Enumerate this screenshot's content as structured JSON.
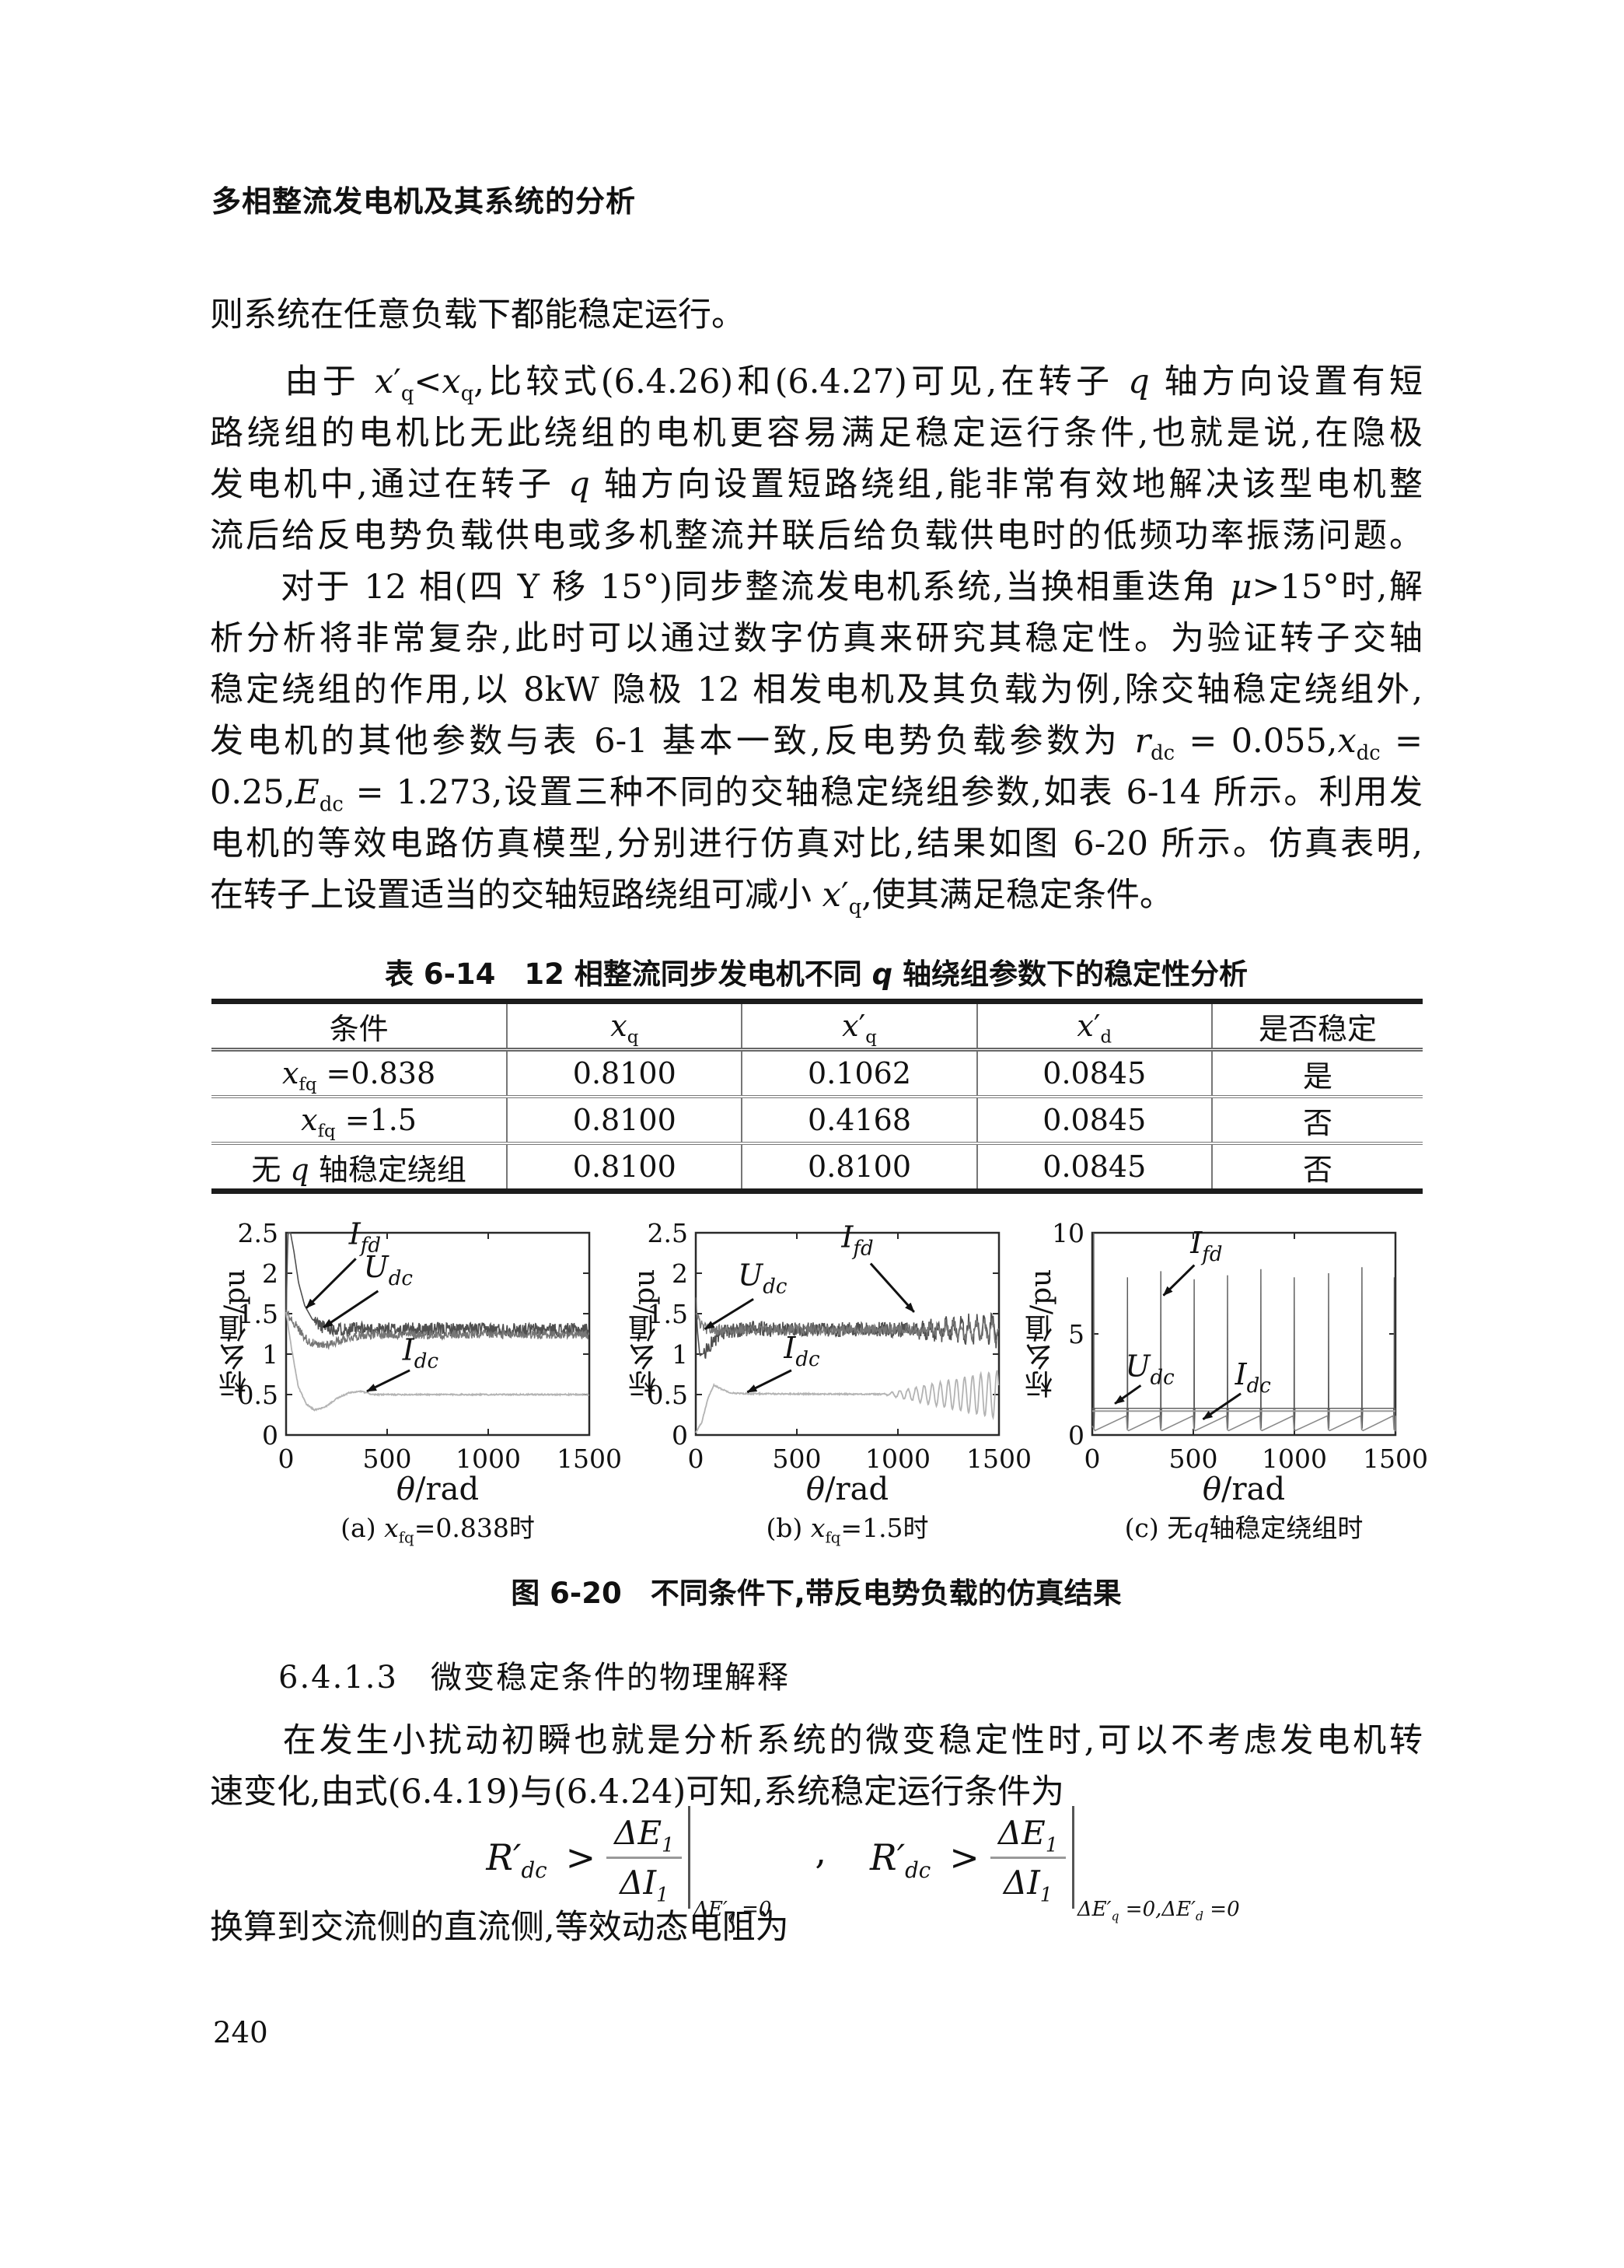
{
  "page": {
    "header": "多相整流发电机及其系统的分析",
    "number": "240"
  },
  "paragraphs": {
    "p1": [
      "则系统在任意负载下都能稳定运行。"
    ],
    "p2": [
      "　　由于 <i>x</i>′<sub>q</sub>&lt;<i>x</i><sub>q</sub>,比较式(6.4.26)和(6.4.27)可见,在转子 <i>q</i> 轴方向设置有短",
      "路绕组的电机比无此绕组的电机更容易满足稳定运行条件,也就是说,在隐极",
      "发电机中,通过在转子 <i>q</i> 轴方向设置短路绕组,能非常有效地解决该型电机整",
      "流后给反电势负载供电或多机整流并联后给负载供电时的低频功率振荡问题。"
    ],
    "p3": [
      "　　对于 12 相(四 Y 移 15°)同步整流发电机系统,当换相重迭角 <i>μ</i>&gt;15°时,解",
      "析分析将非常复杂,此时可以通过数字仿真来研究其稳定性。为验证转子交轴",
      "稳定绕组的作用,以 8kW 隐极 12 相发电机及其负载为例,除交轴稳定绕组外,",
      "发电机的其他参数与表 6-1 基本一致,反电势负载参数为 <i>r</i><sub>dc</sub> = 0.055,<i>x</i><sub>dc</sub> =",
      "0.25,<i>E</i><sub>dc</sub> = 1.273,设置三种不同的交轴稳定绕组参数,如表 6-14 所示。利用发",
      "电机的等效电路仿真模型,分别进行仿真对比,结果如图 6-20 所示。仿真表明,",
      "在转子上设置适当的交轴短路绕组可减小 <i>x</i>′<sub>q</sub>,使其满足稳定条件。"
    ],
    "p4": [
      "　　在发生小扰动初瞬也就是分析系统的微变稳定性时,可以不考虑发电机转",
      "速变化,由式(6.4.19)与(6.4.24)可知,系统稳定运行条件为"
    ],
    "p5": [
      "换算到交流侧的直流侧,等效动态电阻为"
    ]
  },
  "section": {
    "heading": "6.4.1.3　微变稳定条件的物理解释"
  },
  "table": {
    "caption": "表 6-14　12 相整流同步发电机不同 <i>q</i> 轴绕组参数下的稳定性分析",
    "headers": [
      "条件",
      "<i>x</i><sub>q</sub>",
      "<i>x</i>′<sub>q</sub>",
      "<i>x</i>′<sub>d</sub>",
      "是否稳定"
    ],
    "rows": [
      [
        "<i>x</i><sub>fq</sub> =0.838",
        "0.8100",
        "0.1062",
        "0.0845",
        "是"
      ],
      [
        "<i>x</i><sub>fq</sub> =1.5",
        "0.8100",
        "0.4168",
        "0.0845",
        "否"
      ],
      [
        "无 <i>q</i> 轴稳定绕组",
        "0.8100",
        "0.8100",
        "0.0845",
        "否"
      ]
    ]
  },
  "figure": {
    "caption": "图 6-20　不同条件下,带反电势负载的仿真结果"
  },
  "formula": {
    "lhs": "<i>R</i>′<sub>dc</sub>",
    "rel": "&gt;",
    "num": "Δ<i>E</i><sub>1</sub>",
    "den": "Δ<i>I</i><sub>1</sub>",
    "cond1": "Δ<i>E</i>′<sub>q</sub> =0",
    "sep": ",",
    "cond2": "Δ<i>E</i>′<sub>q</sub> =0,Δ<i>E</i>′<sub>d</sub> =0"
  },
  "chart_data": [
    {
      "type": "line",
      "panel": "a",
      "caption_html": "(a) <i>x</i><sub>fq</sub>=0.838时",
      "xlabel_html": "<i>θ</i>/rad",
      "ylabel": "标幺值/pu",
      "xlim": [
        0,
        1500
      ],
      "ylim": [
        0,
        2.5
      ],
      "xticks": [
        0,
        500,
        1000,
        1500
      ],
      "yticks": [
        0,
        0.5,
        1,
        1.5,
        2,
        2.5
      ],
      "seed": 11,
      "series": [
        {
          "name": "I_fd",
          "kind": "interp",
          "color": "#4f4f4f",
          "w": 1.6,
          "noise": 0.085,
          "noise_from": 140,
          "points": [
            [
              0,
              1.45
            ],
            [
              6,
              2.2
            ],
            [
              10,
              2.5
            ],
            [
              22,
              2.5
            ],
            [
              38,
              2.28
            ],
            [
              62,
              1.88
            ],
            [
              92,
              1.6
            ],
            [
              130,
              1.43
            ],
            [
              180,
              1.34
            ],
            [
              260,
              1.31
            ],
            [
              1500,
              1.3
            ]
          ]
        },
        {
          "name": "U_dc",
          "kind": "interp",
          "color": "#767676",
          "w": 1.4,
          "noise": 0.055,
          "noise_from": 0,
          "points": [
            [
              0,
              1.52
            ],
            [
              30,
              1.42
            ],
            [
              70,
              1.28
            ],
            [
              110,
              1.16
            ],
            [
              160,
              1.1
            ],
            [
              220,
              1.13
            ],
            [
              300,
              1.2
            ],
            [
              380,
              1.24
            ],
            [
              1500,
              1.24
            ]
          ]
        },
        {
          "name": "I_dc",
          "kind": "interp",
          "color": "#b3b3b3",
          "w": 1.8,
          "noise": 0.008,
          "noise_from": 0,
          "points": [
            [
              0,
              1.52
            ],
            [
              25,
              1.1
            ],
            [
              60,
              0.6
            ],
            [
              100,
              0.38
            ],
            [
              140,
              0.31
            ],
            [
              190,
              0.34
            ],
            [
              250,
              0.45
            ],
            [
              310,
              0.52
            ],
            [
              370,
              0.54
            ],
            [
              430,
              0.5
            ],
            [
              1500,
              0.5
            ]
          ]
        }
      ],
      "annotations": [
        {
          "m": "I",
          "s": "fd",
          "lx": 390,
          "ly": 2.36,
          "arrow": [
            345,
            2.18,
            100,
            1.57
          ]
        },
        {
          "m": "U",
          "s": "dc",
          "lx": 505,
          "ly": 1.95,
          "arrow": [
            455,
            1.78,
            185,
            1.33
          ]
        },
        {
          "m": "I",
          "s": "dc",
          "lx": 665,
          "ly": 0.93,
          "arrow": [
            612,
            0.8,
            400,
            0.54
          ]
        }
      ]
    },
    {
      "type": "line",
      "panel": "b",
      "caption_html": "(b) <i>x</i><sub>fq</sub>=1.5时",
      "xlabel_html": "<i>θ</i>/rad",
      "ylabel": "标幺值/pu",
      "xlim": [
        0,
        1500
      ],
      "ylim": [
        0,
        2.5
      ],
      "xticks": [
        0,
        500,
        1000,
        1500
      ],
      "yticks": [
        0,
        0.5,
        1,
        1.5,
        2,
        2.5
      ],
      "seed": 23,
      "series": [
        {
          "name": "I_fd",
          "kind": "interp",
          "color": "#4f4f4f",
          "w": 1.6,
          "noise": 0.095,
          "noise_from": 40,
          "osc": {
            "start": 1000,
            "period": 38,
            "amp": 0.16
          },
          "points": [
            [
              0,
              1.7
            ],
            [
              8,
              1.3
            ],
            [
              20,
              0.98
            ],
            [
              45,
              1.02
            ],
            [
              85,
              1.16
            ],
            [
              150,
              1.28
            ],
            [
              230,
              1.31
            ],
            [
              1500,
              1.3
            ]
          ]
        },
        {
          "name": "U_dc",
          "kind": "interp",
          "color": "#767676",
          "w": 1.4,
          "noise": 0.065,
          "noise_from": 0,
          "osc": {
            "start": 1000,
            "period": 38,
            "amp": 0.13
          },
          "points": [
            [
              0,
              1.5
            ],
            [
              25,
              1.36
            ],
            [
              60,
              1.3
            ],
            [
              1500,
              1.3
            ]
          ]
        },
        {
          "name": "I_dc",
          "kind": "interp",
          "color": "#b3b3b3",
          "w": 1.8,
          "noise": 0.008,
          "noise_from": 0,
          "osc": {
            "start": 920,
            "period": 40,
            "amp": 0.3
          },
          "points": [
            [
              0,
              0.03
            ],
            [
              30,
              0.16
            ],
            [
              60,
              0.45
            ],
            [
              90,
              0.62
            ],
            [
              125,
              0.57
            ],
            [
              175,
              0.52
            ],
            [
              245,
              0.51
            ],
            [
              1500,
              0.5
            ]
          ]
        }
      ],
      "annotations": [
        {
          "m": "U",
          "s": "dc",
          "lx": 330,
          "ly": 1.85,
          "arrow": [
            285,
            1.68,
            45,
            1.31
          ]
        },
        {
          "m": "I",
          "s": "fd",
          "lx": 800,
          "ly": 2.32,
          "arrow": [
            865,
            2.12,
            1080,
            1.52
          ]
        },
        {
          "m": "I",
          "s": "dc",
          "lx": 525,
          "ly": 0.95,
          "arrow": [
            473,
            0.8,
            255,
            0.53
          ]
        }
      ]
    },
    {
      "type": "line",
      "panel": "c",
      "caption_html": "(c) 无<i>q</i>轴稳定绕组时",
      "xlabel_html": "<i>θ</i>/rad",
      "ylabel": "标幺值/pu",
      "xlim": [
        0,
        1500
      ],
      "ylim": [
        0,
        10
      ],
      "xticks": [
        0,
        500,
        1000,
        1500
      ],
      "yticks": [
        0,
        5,
        10
      ],
      "seed": 5,
      "series": [
        {
          "name": "I_fd",
          "kind": "spikes",
          "color": "#5a5a5a",
          "w": 1.4,
          "base": 1.32,
          "spikes": [
            8,
            175,
            340,
            505,
            670,
            835,
            1000,
            1170,
            1335,
            1495
          ],
          "heights": [
            10,
            7.8,
            8.1,
            7.7,
            7.9,
            8.2,
            7.8,
            8.0,
            8.3,
            7.8
          ]
        },
        {
          "name": "U_dc",
          "kind": "flat",
          "color": "#9a9a9a",
          "w": 2,
          "y": 1.18
        },
        {
          "name": "I_dc",
          "kind": "saw",
          "color": "#8a8a8a",
          "w": 1.6,
          "lo": 0.22,
          "hi": 0.95,
          "spikes": [
            8,
            175,
            340,
            505,
            670,
            835,
            1000,
            1170,
            1335,
            1495
          ]
        }
      ],
      "annotations": [
        {
          "m": "I",
          "s": "fd",
          "lx": 565,
          "ly": 9.0,
          "arrow": [
            505,
            8.4,
            352,
            6.9
          ]
        },
        {
          "m": "U",
          "s": "dc",
          "lx": 285,
          "ly": 2.9,
          "arrow": [
            240,
            2.45,
            112,
            1.55
          ]
        },
        {
          "m": "I",
          "s": "dc",
          "lx": 795,
          "ly": 2.5,
          "arrow": [
            735,
            2.05,
            548,
            0.78
          ]
        }
      ]
    }
  ]
}
